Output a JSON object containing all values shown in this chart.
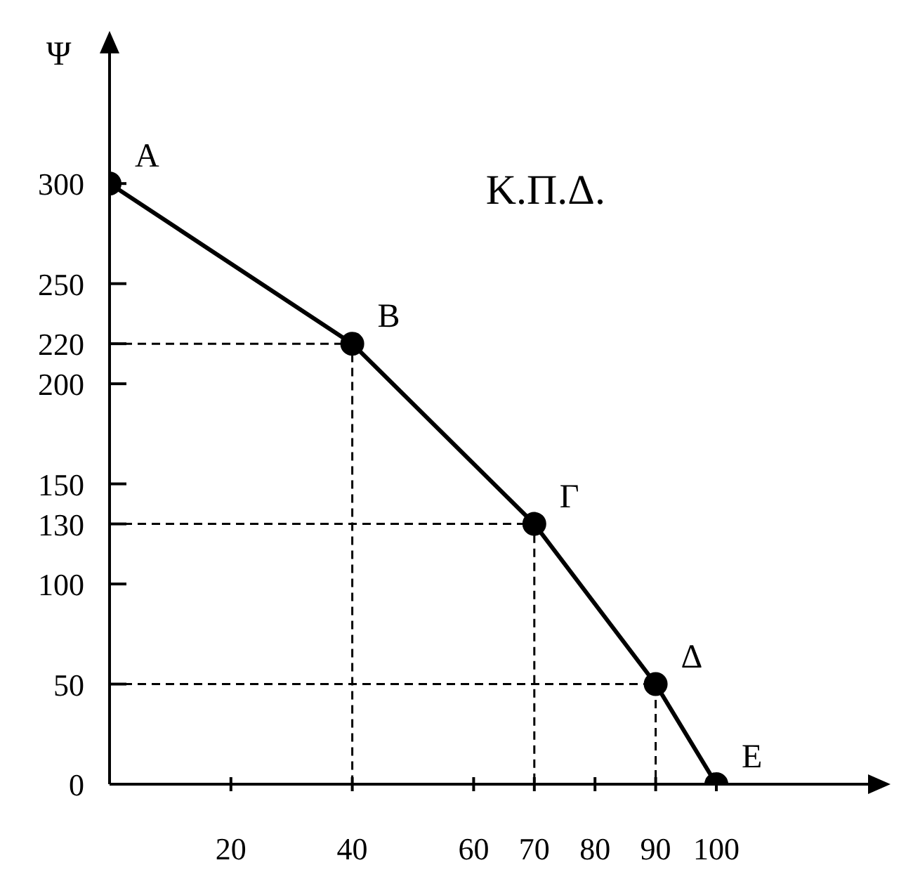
{
  "chart_data": {
    "type": "line",
    "ylabel": "Ψ",
    "xlim": [
      0,
      125
    ],
    "ylim": [
      0,
      365
    ],
    "xticks": [
      20,
      40,
      60,
      70,
      80,
      90,
      100
    ],
    "yticks": [
      0,
      50,
      100,
      130,
      150,
      200,
      220,
      250,
      300
    ],
    "grid": false,
    "legend": false,
    "series": [
      {
        "name": "Κ.Π.Δ.",
        "color": "#000000",
        "marker": "circle",
        "line_style": "solid",
        "x": [
          0,
          40,
          70,
          90,
          100
        ],
        "values": [
          300,
          220,
          130,
          50,
          0
        ],
        "value_labels": [
          "A",
          "B",
          "Γ",
          "Δ",
          "E"
        ]
      },
      {
        "color": "#000000",
        "marker": "none",
        "line_style": "dashed",
        "x": [
          0,
          40,
          40
        ],
        "values": [
          220,
          220,
          0
        ]
      },
      {
        "color": "#000000",
        "marker": "none",
        "line_style": "dashed",
        "x": [
          0,
          70,
          70
        ],
        "values": [
          130,
          130,
          0
        ]
      },
      {
        "color": "#000000",
        "marker": "none",
        "line_style": "dashed",
        "x": [
          0,
          90,
          90
        ],
        "values": [
          50,
          50,
          0
        ]
      }
    ]
  }
}
